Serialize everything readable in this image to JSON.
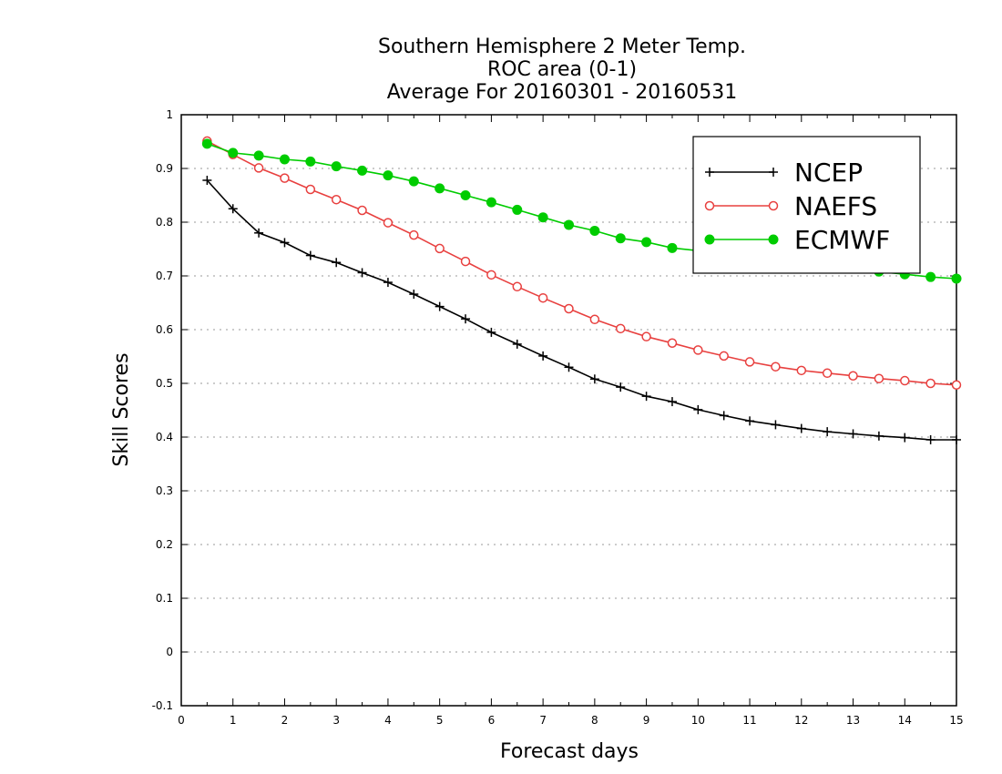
{
  "chart_data": {
    "type": "line",
    "title_lines": [
      "Southern Hemisphere 2 Meter Temp.",
      "ROC area (0-1)",
      "Average For 20160301 - 20160531"
    ],
    "xlabel": "Forecast days",
    "ylabel": "Skill Scores",
    "xlim": [
      0,
      15
    ],
    "ylim": [
      -0.1,
      1
    ],
    "x_ticks": [
      "0",
      "1",
      "2",
      "3",
      "4",
      "5",
      "6",
      "7",
      "8",
      "9",
      "10",
      "11",
      "12",
      "13",
      "14",
      "15"
    ],
    "y_ticks": [
      "-0.1",
      "0",
      "0.1",
      "0.2",
      "0.3",
      "0.4",
      "0.5",
      "0.6",
      "0.7",
      "0.8",
      "0.9",
      "1"
    ],
    "grid": "horizontal dotted",
    "legend_position": "top-right",
    "x": [
      0.5,
      1,
      1.5,
      2,
      2.5,
      3,
      3.5,
      4,
      4.5,
      5,
      5.5,
      6,
      6.5,
      7,
      7.5,
      8,
      8.5,
      9,
      9.5,
      10,
      10.5,
      11,
      11.5,
      12,
      12.5,
      13,
      13.5,
      14,
      14.5,
      15
    ],
    "series": [
      {
        "name": "NCEP",
        "color": "#000000",
        "marker": "plus",
        "values": [
          0.878,
          0.825,
          0.78,
          0.762,
          0.738,
          0.725,
          0.706,
          0.688,
          0.666,
          0.643,
          0.62,
          0.595,
          0.573,
          0.551,
          0.53,
          0.508,
          0.493,
          0.476,
          0.466,
          0.451,
          0.44,
          0.43,
          0.423,
          0.416,
          0.41,
          0.406,
          0.402,
          0.399,
          0.395,
          0.395
        ]
      },
      {
        "name": "NAEFS",
        "color": "#e8403f",
        "marker": "open-circle",
        "values": [
          0.951,
          0.926,
          0.901,
          0.882,
          0.861,
          0.842,
          0.822,
          0.799,
          0.776,
          0.751,
          0.727,
          0.702,
          0.68,
          0.659,
          0.639,
          0.619,
          0.602,
          0.587,
          0.575,
          0.562,
          0.551,
          0.54,
          0.531,
          0.524,
          0.519,
          0.514,
          0.509,
          0.505,
          0.5,
          0.497
        ]
      },
      {
        "name": "ECMWF",
        "color": "#00cc00",
        "marker": "filled-circle",
        "values": [
          0.946,
          0.929,
          0.924,
          0.917,
          0.913,
          0.904,
          0.896,
          0.887,
          0.876,
          0.863,
          0.85,
          0.837,
          0.823,
          0.809,
          0.795,
          0.784,
          0.77,
          0.763,
          0.752,
          0.747,
          0.742,
          0.737,
          0.731,
          0.726,
          0.72,
          0.714,
          0.708,
          0.703,
          0.698,
          0.695
        ]
      }
    ]
  }
}
